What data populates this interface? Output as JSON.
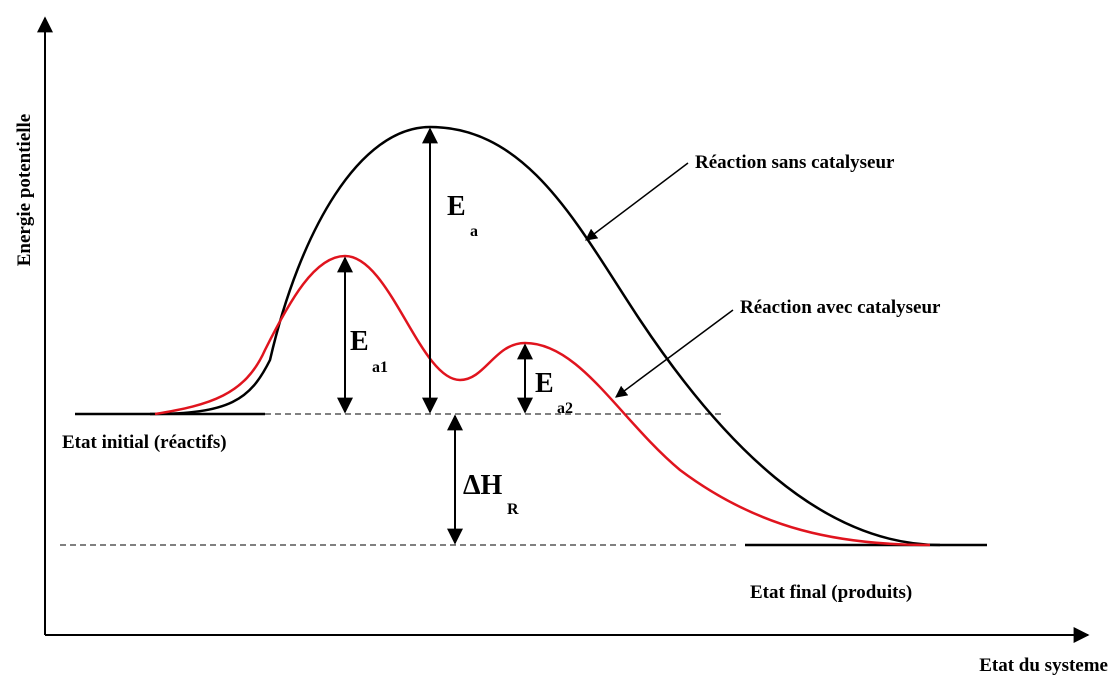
{
  "labels": {
    "y_axis": "Energie potentielle",
    "x_axis": "Etat du systeme",
    "uncatalyzed": "Réaction sans catalyseur",
    "catalyzed": "Réaction avec catalyseur",
    "initial_state": "Etat initial (réactifs)",
    "final_state": "Etat final (produits)"
  },
  "energies": [
    {
      "symbol": "E",
      "subscript": "a"
    },
    {
      "symbol": "E",
      "subscript": "a1"
    },
    {
      "symbol": "E",
      "subscript": "a2"
    },
    {
      "symbol": "ΔH",
      "subscript": "R"
    }
  ]
}
